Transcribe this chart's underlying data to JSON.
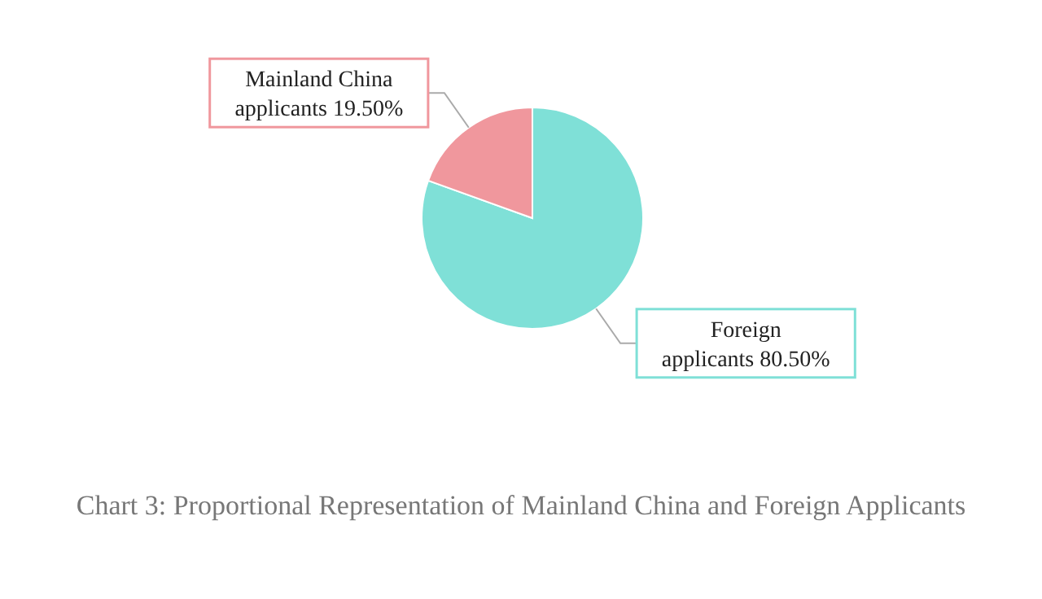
{
  "chart_data": {
    "type": "pie",
    "title": "Chart 3: Proportional Representation of Mainland China and Foreign Applicants",
    "categories": [
      "Foreign applicants",
      "Mainland China applicants"
    ],
    "values": [
      80.5,
      19.5
    ],
    "value_labels": [
      "80.50%",
      "19.50%"
    ],
    "colors": [
      "#7fe0d7",
      "#f0979d"
    ]
  }
}
